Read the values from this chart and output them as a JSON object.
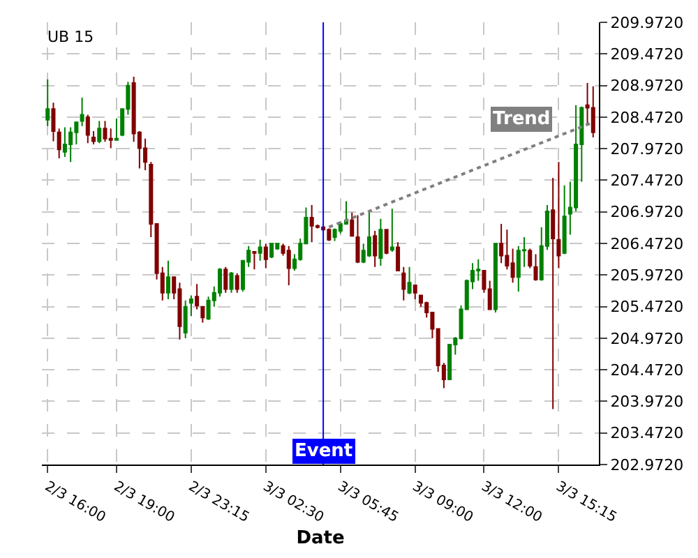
{
  "chart_data": {
    "type": "candlestick",
    "title": "UB 15",
    "xlabel": "Date",
    "categories": [
      "2/3 16:00",
      null,
      null,
      null,
      null,
      null,
      null,
      null,
      null,
      null,
      null,
      null,
      "2/3 19:00",
      null,
      null,
      null,
      null,
      null,
      null,
      null,
      null,
      null,
      null,
      null,
      null,
      "2/3 23:15",
      null,
      null,
      null,
      null,
      null,
      null,
      null,
      null,
      null,
      null,
      null,
      null,
      "3/3 02:30",
      null,
      null,
      null,
      null,
      null,
      null,
      null,
      null,
      null,
      null,
      null,
      null,
      "3/3 05:45",
      null,
      null,
      null,
      null,
      null,
      null,
      null,
      null,
      null,
      null,
      null,
      null,
      "3/3 09:00",
      null,
      null,
      null,
      null,
      null,
      null,
      null,
      null,
      null,
      null,
      null,
      "3/3 12:00",
      null,
      null,
      null,
      null,
      null,
      null,
      null,
      null,
      null,
      null,
      null,
      null,
      "3/3 15:15",
      null,
      null,
      null,
      null,
      null,
      null
    ],
    "ohlc": [
      [
        208.43,
        209.07,
        208.33,
        208.6
      ],
      [
        208.6,
        208.7,
        208.09,
        208.25
      ],
      [
        208.23,
        208.29,
        207.82,
        207.96
      ],
      [
        207.92,
        208.31,
        207.84,
        208.04
      ],
      [
        208.04,
        208.31,
        207.76,
        208.23
      ],
      [
        208.23,
        208.39,
        208.04,
        208.39
      ],
      [
        208.41,
        208.78,
        208.33,
        208.51
      ],
      [
        208.47,
        208.51,
        208.06,
        208.19
      ],
      [
        208.15,
        208.25,
        208.04,
        208.09
      ],
      [
        208.09,
        208.41,
        208.06,
        208.29
      ],
      [
        208.29,
        208.41,
        208.08,
        208.13
      ],
      [
        208.13,
        208.29,
        207.98,
        208.11
      ],
      [
        208.11,
        208.45,
        208.11,
        208.13
      ],
      [
        208.19,
        208.6,
        208.17,
        208.6
      ],
      [
        208.6,
        209.03,
        208.51,
        208.97
      ],
      [
        209.01,
        209.11,
        208.08,
        208.21
      ],
      [
        208.23,
        208.25,
        207.66,
        207.98
      ],
      [
        207.98,
        208.13,
        207.63,
        207.76
      ],
      [
        207.72,
        207.76,
        206.57,
        206.78
      ],
      [
        206.78,
        206.78,
        205.9,
        206.0
      ],
      [
        206.0,
        206.1,
        205.57,
        205.69
      ],
      [
        205.69,
        206.2,
        205.59,
        205.94
      ],
      [
        205.94,
        205.94,
        205.59,
        205.69
      ],
      [
        205.75,
        205.85,
        204.95,
        205.16
      ],
      [
        205.06,
        205.57,
        204.97,
        205.47
      ],
      [
        205.53,
        205.65,
        205.32,
        205.59
      ],
      [
        205.63,
        205.83,
        205.43,
        205.49
      ],
      [
        205.47,
        205.47,
        205.22,
        205.3
      ],
      [
        205.28,
        205.63,
        205.26,
        205.57
      ],
      [
        205.57,
        205.79,
        205.47,
        205.69
      ],
      [
        205.69,
        206.08,
        205.63,
        206.06
      ],
      [
        206.06,
        206.1,
        205.69,
        205.75
      ],
      [
        205.75,
        206.02,
        205.69,
        206.0
      ],
      [
        205.96,
        206.0,
        205.69,
        205.75
      ],
      [
        205.75,
        206.2,
        205.71,
        206.2
      ],
      [
        206.18,
        206.43,
        206.1,
        206.36
      ],
      [
        206.34,
        206.34,
        206.06,
        206.32
      ],
      [
        206.32,
        206.53,
        206.2,
        206.41
      ],
      [
        206.41,
        206.47,
        206.08,
        206.22
      ],
      [
        206.26,
        206.47,
        206.24,
        206.47
      ],
      [
        206.39,
        206.47,
        206.37,
        206.47
      ],
      [
        206.43,
        206.47,
        206.28,
        206.32
      ],
      [
        206.36,
        206.43,
        205.81,
        206.08
      ],
      [
        206.08,
        206.3,
        206.04,
        206.22
      ],
      [
        206.22,
        206.55,
        206.2,
        206.47
      ],
      [
        206.47,
        207.04,
        206.47,
        206.88
      ],
      [
        206.88,
        207.08,
        206.49,
        206.75
      ],
      [
        206.75,
        206.77,
        206.71,
        206.73
      ],
      [
        206.73,
        206.75,
        206.67,
        206.69
      ],
      [
        206.69,
        206.71,
        206.51,
        206.53
      ],
      [
        206.57,
        206.71,
        206.51,
        206.69
      ],
      [
        206.67,
        206.82,
        206.63,
        206.78
      ],
      [
        206.78,
        207.14,
        206.78,
        206.84
      ],
      [
        206.84,
        206.96,
        206.59,
        206.59
      ],
      [
        206.57,
        206.92,
        206.16,
        206.18
      ],
      [
        206.18,
        206.47,
        206.16,
        206.36
      ],
      [
        206.28,
        206.98,
        206.26,
        206.57
      ],
      [
        206.59,
        206.67,
        206.1,
        206.28
      ],
      [
        206.24,
        206.86,
        206.12,
        206.69
      ],
      [
        206.69,
        206.69,
        206.3,
        206.32
      ],
      [
        206.37,
        207.02,
        206.34,
        206.41
      ],
      [
        206.41,
        206.49,
        206.04,
        206.04
      ],
      [
        206.0,
        206.1,
        205.57,
        205.75
      ],
      [
        205.69,
        206.1,
        205.67,
        205.85
      ],
      [
        205.81,
        205.81,
        205.59,
        205.69
      ],
      [
        205.65,
        205.65,
        205.47,
        205.53
      ],
      [
        205.53,
        205.55,
        205.3,
        205.38
      ],
      [
        205.38,
        205.38,
        204.97,
        205.12
      ],
      [
        205.12,
        205.12,
        204.44,
        204.54
      ],
      [
        204.54,
        204.58,
        204.18,
        204.32
      ],
      [
        204.32,
        204.87,
        204.32,
        204.87
      ],
      [
        204.87,
        204.99,
        204.71,
        204.97
      ],
      [
        204.97,
        205.49,
        204.95,
        205.43
      ],
      [
        205.43,
        205.9,
        205.42,
        205.88
      ],
      [
        205.87,
        206.16,
        205.75,
        206.04
      ],
      [
        206.04,
        206.22,
        205.88,
        206.06
      ],
      [
        206.04,
        206.04,
        205.69,
        205.75
      ],
      [
        205.75,
        205.88,
        205.42,
        205.43
      ],
      [
        205.43,
        206.47,
        205.38,
        206.47
      ],
      [
        206.47,
        206.78,
        206.16,
        206.28
      ],
      [
        206.28,
        206.69,
        206.06,
        206.12
      ],
      [
        206.16,
        206.39,
        205.85,
        205.94
      ],
      [
        205.94,
        206.43,
        205.71,
        206.36
      ],
      [
        206.36,
        206.57,
        206.1,
        206.37
      ],
      [
        206.36,
        206.39,
        206.08,
        206.12
      ],
      [
        206.1,
        206.3,
        205.88,
        205.9
      ],
      [
        205.9,
        206.73,
        205.88,
        206.43
      ],
      [
        206.43,
        207.08,
        206.37,
        206.98
      ],
      [
        207.0,
        207.51,
        203.85,
        206.55
      ],
      [
        206.53,
        207.76,
        206.08,
        206.28
      ],
      [
        206.32,
        207.39,
        206.3,
        206.9
      ],
      [
        206.94,
        207.45,
        206.61,
        207.04
      ],
      [
        207.04,
        208.66,
        206.98,
        208.04
      ],
      [
        208.04,
        208.64,
        207.45,
        208.62
      ],
      [
        208.66,
        209.01,
        208.35,
        208.62
      ],
      [
        208.62,
        208.96,
        208.15,
        208.23
      ]
    ],
    "colors": [
      "#008000",
      "#800000",
      "#800000",
      "#008000",
      "#008000",
      "#008000",
      "#008000",
      "#800000",
      "#800000",
      "#008000",
      "#800000",
      "#800000",
      "#008000",
      "#008000",
      "#008000",
      "#800000",
      "#800000",
      "#800000",
      "#800000",
      "#800000",
      "#800000",
      "#008000",
      "#800000",
      "#800000",
      "#008000",
      "#008000",
      "#800000",
      "#800000",
      "#008000",
      "#008000",
      "#008000",
      "#800000",
      "#008000",
      "#800000",
      "#008000",
      "#008000",
      "#800000",
      "#008000",
      "#800000",
      "#008000",
      "#008000",
      "#800000",
      "#800000",
      "#008000",
      "#008000",
      "#008000",
      "#800000",
      "#800000",
      "#800000",
      "#800000",
      "#008000",
      "#008000",
      "#008000",
      "#800000",
      "#800000",
      "#008000",
      "#008000",
      "#800000",
      "#008000",
      "#800000",
      "#008000",
      "#800000",
      "#800000",
      "#008000",
      "#800000",
      "#800000",
      "#800000",
      "#800000",
      "#800000",
      "#800000",
      "#008000",
      "#008000",
      "#008000",
      "#008000",
      "#008000",
      "#008000",
      "#800000",
      "#800000",
      "#008000",
      "#800000",
      "#800000",
      "#800000",
      "#008000",
      "#008000",
      "#800000",
      "#800000",
      "#008000",
      "#008000",
      "#800000",
      "#800000",
      "#008000",
      "#008000",
      "#008000",
      "#008000",
      "#800000",
      "#800000"
    ],
    "series": [
      {
        "type": "line",
        "name": "Trend",
        "color": "#808080",
        "line_style": "dotted",
        "values": [
          null,
          null,
          null,
          null,
          null,
          null,
          null,
          null,
          null,
          null,
          null,
          null,
          null,
          null,
          null,
          null,
          null,
          null,
          null,
          null,
          null,
          null,
          null,
          null,
          null,
          null,
          null,
          null,
          null,
          null,
          null,
          null,
          null,
          null,
          null,
          null,
          null,
          null,
          null,
          null,
          null,
          null,
          null,
          null,
          null,
          null,
          null,
          null,
          null,
          206.73,
          null,
          null,
          null,
          null,
          null,
          null,
          null,
          null,
          null,
          null,
          null,
          null,
          null,
          null,
          null,
          null,
          null,
          null,
          null,
          null,
          null,
          null,
          null,
          null,
          null,
          null,
          null,
          null,
          null,
          null,
          null,
          null,
          null,
          null,
          null,
          null,
          null,
          null,
          null,
          null,
          null,
          null,
          null,
          null,
          null,
          208.39
        ]
      }
    ],
    "annotations": [
      "Event"
    ],
    "ylim": [
      202.972,
      209.972
    ],
    "yticks": [
      {
        "value": 202.972,
        "label": "202.9720"
      },
      {
        "value": 203.472,
        "label": "203.4720"
      },
      {
        "value": 203.972,
        "label": "203.9720"
      },
      {
        "value": 204.472,
        "label": "204.4720"
      },
      {
        "value": 204.972,
        "label": "204.9720"
      },
      {
        "value": 205.472,
        "label": "205.4720"
      },
      {
        "value": 205.972,
        "label": "205.9720"
      },
      {
        "value": 206.472,
        "label": "206.4720"
      },
      {
        "value": 206.972,
        "label": "206.9720"
      },
      {
        "value": 207.472,
        "label": "207.4720"
      },
      {
        "value": 207.972,
        "label": "207.9720"
      },
      {
        "value": 208.472,
        "label": "208.4720"
      },
      {
        "value": 208.972,
        "label": "208.9720"
      },
      {
        "value": 209.472,
        "label": "209.4720"
      },
      {
        "value": 209.972,
        "label": "209.9720"
      }
    ],
    "grid": true
  }
}
